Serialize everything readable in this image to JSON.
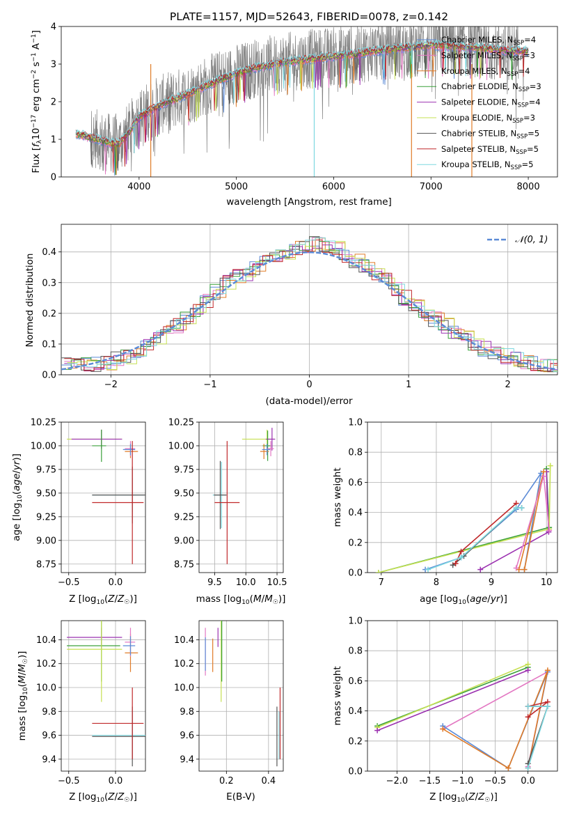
{
  "chart_data": [
    {
      "id": "spectrum",
      "type": "line",
      "title": "PLATE=1157, MJD=52643, FIBERID=0078, z=0.142",
      "xlabel": "wavelength [Angstrom, rest frame]",
      "ylabel": "Flux [f_λ10^−17 erg cm^−2 s^−1 A^−1]",
      "xlim": [
        3200,
        8300
      ],
      "ylim": [
        0,
        4
      ],
      "xticks": [
        "4000",
        "5000",
        "6000",
        "7000",
        "8000"
      ],
      "yticks": [
        "0",
        "1",
        "2",
        "3",
        "4"
      ],
      "grid": false,
      "legend_position": "right",
      "data_continuum": {
        "x": [
          3350,
          3500,
          3650,
          3700,
          3800,
          3900,
          4000,
          4200,
          4500,
          4800,
          5000,
          5200,
          5500,
          5800,
          6000,
          6300,
          6600,
          7000,
          7400,
          7800,
          8000
        ],
        "y": [
          1.15,
          1.05,
          0.95,
          0.9,
          0.9,
          1.2,
          1.6,
          1.9,
          2.2,
          2.55,
          2.75,
          2.9,
          3.05,
          3.15,
          3.2,
          3.3,
          3.4,
          3.5,
          3.45,
          3.35,
          3.35
        ]
      },
      "models": [
        {
          "name": "Chabrier MILES, N$_{SSP}$=4",
          "label_main": "Chabrier MILES, N",
          "label_sub": "SSP",
          "label_tail": "=4",
          "color": "#5b8ad6"
        },
        {
          "name": "Salpeter MILES, N$_{SSP}$=3",
          "label_main": "Salpeter MILES, N",
          "label_sub": "SSP",
          "label_tail": "=3",
          "color": "#e377c2"
        },
        {
          "name": "Kroupa MILES, N$_{SSP}$=4",
          "label_main": "Kroupa MILES, N",
          "label_sub": "SSP",
          "label_tail": "=4",
          "color": "#e07b27"
        },
        {
          "name": "Chabrier ELODIE, N$_{SSP}$=3",
          "label_main": "Chabrier ELODIE, N",
          "label_sub": "SSP",
          "label_tail": "=3",
          "color": "#3aa03a"
        },
        {
          "name": "Salpeter ELODIE, N$_{SSP}$=4",
          "label_main": "Salpeter ELODIE, N",
          "label_sub": "SSP",
          "label_tail": "=4",
          "color": "#9b30b0"
        },
        {
          "name": "Kroupa ELODIE, N$_{SSP}$=3",
          "label_main": "Kroupa ELODIE, N",
          "label_sub": "SSP",
          "label_tail": "=3",
          "color": "#c6e052"
        },
        {
          "name": "Chabrier STELIB, N$_{SSP}$=5",
          "label_main": "Chabrier STELIB, N",
          "label_sub": "SSP",
          "label_tail": "=5",
          "color": "#555555"
        },
        {
          "name": "Salpeter STELIB, N$_{SSP}$=5",
          "label_main": "Salpeter STELIB, N",
          "label_sub": "SSP",
          "label_tail": "=5",
          "color": "#c0282a"
        },
        {
          "name": "Kroupa STELIB, N$_{SSP}$=5",
          "label_main": "Kroupa STELIB, N",
          "label_sub": "SSP",
          "label_tail": "=5",
          "color": "#7dd8e0"
        }
      ]
    },
    {
      "id": "residuals",
      "type": "histogram",
      "xlabel": "(data-model)/error",
      "ylabel": "Normed distribution",
      "xlim": [
        -2.5,
        2.5
      ],
      "ylim": [
        0,
        0.49
      ],
      "xticks": [
        -2,
        -1,
        0,
        1,
        2
      ],
      "yticks": [
        0.0,
        0.1,
        0.2,
        0.3,
        0.4
      ],
      "grid": true,
      "legend_position": "top-right",
      "reference_curve": {
        "label": "𝒩(0, 1)",
        "mean": 0,
        "sigma": 1,
        "color": "#5b8ad6"
      },
      "bin_width": 0.1,
      "bin_edges_start": -2.5,
      "heights_reference": [
        0.03,
        0.03,
        0.032,
        0.035,
        0.04,
        0.05,
        0.06,
        0.075,
        0.1,
        0.12,
        0.14,
        0.16,
        0.19,
        0.21,
        0.24,
        0.27,
        0.3,
        0.32,
        0.33,
        0.35,
        0.37,
        0.39,
        0.4,
        0.41,
        0.42,
        0.43,
        0.42,
        0.41,
        0.39,
        0.37,
        0.35,
        0.33,
        0.31,
        0.28,
        0.25,
        0.23,
        0.2,
        0.18,
        0.16,
        0.14,
        0.12,
        0.1,
        0.085,
        0.07,
        0.06,
        0.05,
        0.04,
        0.035,
        0.03,
        0.025
      ]
    },
    {
      "id": "age-vs-Z",
      "type": "errorbar",
      "xlabel": "Z [log10(Z/Z☉)]",
      "ylabel": "age  [log10(age/yr)]",
      "xlim": [
        -0.58,
        0.32
      ],
      "ylim": [
        8.66,
        10.25
      ],
      "xticks": [
        "−0.5",
        "0.0"
      ],
      "xtick_values": [
        -0.5,
        0.0
      ],
      "yticks": [
        "8.75",
        "9.00",
        "9.25",
        "9.50",
        "9.75",
        "10.00",
        "10.25"
      ],
      "ytick_values": [
        8.75,
        9.0,
        9.25,
        9.5,
        9.75,
        10.0,
        10.25
      ],
      "grid": true,
      "points": [
        {
          "x": -0.15,
          "y": 10.07,
          "xerr": [
            0.37,
            0.22
          ],
          "yerr": 0.1,
          "color": "#c6e052"
        },
        {
          "x": -0.15,
          "y": 10.07,
          "xerr": [
            0.32,
            0.22
          ],
          "yerr": 0.1,
          "color": "#9b30b0"
        },
        {
          "x": -0.15,
          "y": 10.0,
          "xerr": [
            0.1,
            0.05
          ],
          "yerr": 0.17,
          "color": "#3aa03a"
        },
        {
          "x": 0.16,
          "y": 9.94,
          "xerr": [
            0.06,
            0.08
          ],
          "yerr": 0.07,
          "color": "#e07b27"
        },
        {
          "x": 0.16,
          "y": 9.97,
          "xerr": [
            0.06,
            0.05
          ],
          "yerr": 0.08,
          "color": "#e377c2"
        },
        {
          "x": 0.16,
          "y": 9.96,
          "xerr": [
            0.08,
            0.05
          ],
          "yerr": 0.06,
          "color": "#5b8ad6"
        },
        {
          "x": 0.18,
          "y": 9.48,
          "xerr": [
            0.43,
            0.12
          ],
          "yerr": 0.18,
          "color": "#7dd8e0"
        },
        {
          "x": 0.18,
          "y": 9.48,
          "xerr": [
            0.43,
            0.14
          ],
          "yerr": 0.3,
          "color": "#555555"
        },
        {
          "x": 0.18,
          "y": 9.4,
          "xerr": [
            0.43,
            0.12
          ],
          "yerr": 0.65,
          "color": "#c0282a"
        }
      ]
    },
    {
      "id": "age-vs-mass",
      "type": "errorbar",
      "xlabel": "mass [log10(M/M☉)]",
      "xlim": [
        9.25,
        10.6
      ],
      "ylim": [
        8.66,
        10.25
      ],
      "xticks": [
        "9.5",
        "10.0",
        "10.5"
      ],
      "xtick_values": [
        9.5,
        10.0,
        10.5
      ],
      "yticks": [
        "8.75",
        "9.00",
        "9.25",
        "9.50",
        "9.75",
        "10.00",
        "10.25"
      ],
      "ytick_values": [
        8.75,
        9.0,
        9.25,
        9.5,
        9.75,
        10.0,
        10.25
      ],
      "grid": true,
      "points": [
        {
          "x": 10.34,
          "y": 10.07,
          "xerr": [
            0.4,
            0.12
          ],
          "yerr": 0.1,
          "color": "#c6e052"
        },
        {
          "x": 10.42,
          "y": 10.07,
          "xerr": [
            0.1,
            0.05
          ],
          "yerr": 0.12,
          "color": "#9b30b0"
        },
        {
          "x": 10.35,
          "y": 10.0,
          "xerr": [
            0.08,
            0.05
          ],
          "yerr": 0.16,
          "color": "#3aa03a"
        },
        {
          "x": 10.29,
          "y": 9.94,
          "xerr": [
            0.06,
            0.08
          ],
          "yerr": 0.08,
          "color": "#e07b27"
        },
        {
          "x": 10.4,
          "y": 9.97,
          "xerr": [
            0.06,
            0.05
          ],
          "yerr": 0.08,
          "color": "#e377c2"
        },
        {
          "x": 10.34,
          "y": 9.96,
          "xerr": [
            0.08,
            0.05
          ],
          "yerr": 0.06,
          "color": "#5b8ad6"
        },
        {
          "x": 9.61,
          "y": 9.48,
          "xerr": [
            0.14,
            0.08
          ],
          "yerr": 0.35,
          "color": "#7dd8e0"
        },
        {
          "x": 9.59,
          "y": 9.48,
          "xerr": [
            0.1,
            0.1
          ],
          "yerr": 0.36,
          "color": "#555555"
        },
        {
          "x": 9.7,
          "y": 9.4,
          "xerr": [
            0.2,
            0.2
          ],
          "yerr": 0.65,
          "color": "#c0282a"
        }
      ]
    },
    {
      "id": "weight-vs-age",
      "type": "line",
      "xlabel": "age  [log10(age/yr)]",
      "ylabel": "mass weight",
      "xlim": [
        6.75,
        10.2
      ],
      "ylim": [
        0,
        1
      ],
      "xticks": [
        "7",
        "8",
        "9",
        "10"
      ],
      "xtick_values": [
        7,
        8,
        9,
        10
      ],
      "yticks": [
        "0.0",
        "0.2",
        "0.4",
        "0.6",
        "0.8",
        "1.0"
      ],
      "ytick_values": [
        0,
        0.2,
        0.4,
        0.6,
        0.8,
        1.0
      ],
      "grid": true,
      "series": [
        {
          "color": "#3aa03a",
          "x": [
            6.95,
            10.05,
            10.0
          ],
          "y": [
            0.0,
            0.3,
            0.69
          ]
        },
        {
          "color": "#c6e052",
          "x": [
            6.95,
            10.05,
            10.07
          ],
          "y": [
            0.0,
            0.29,
            0.71
          ]
        },
        {
          "color": "#9b30b0",
          "x": [
            8.8,
            10.04,
            10.0
          ],
          "y": [
            0.02,
            0.27,
            0.67
          ]
        },
        {
          "color": "#5b8ad6",
          "x": [
            7.8,
            8.45,
            9.45,
            9.9,
            9.6
          ],
          "y": [
            0.02,
            0.1,
            0.42,
            0.66,
            0.02
          ]
        },
        {
          "color": "#e07b27",
          "x": [
            9.5,
            9.95,
            9.6
          ],
          "y": [
            0.02,
            0.67,
            0.02
          ]
        },
        {
          "color": "#e377c2",
          "x": [
            9.45,
            9.95,
            10.05
          ],
          "y": [
            0.03,
            0.64,
            0.28
          ]
        },
        {
          "color": "#555555",
          "x": [
            8.3,
            8.5,
            9.45,
            9.55
          ],
          "y": [
            0.05,
            0.11,
            0.43,
            0.43
          ]
        },
        {
          "color": "#c0282a",
          "x": [
            8.35,
            8.45,
            9.45
          ],
          "y": [
            0.06,
            0.14,
            0.46
          ]
        },
        {
          "color": "#7dd8e0",
          "x": [
            7.85,
            8.45,
            9.45,
            9.55
          ],
          "y": [
            0.02,
            0.1,
            0.43,
            0.43
          ]
        }
      ]
    },
    {
      "id": "mass-vs-Z",
      "type": "errorbar",
      "xlabel": "Z [log10(Z/Z☉)]",
      "ylabel": "mass [log10(M/M☉)]",
      "xlim": [
        -0.58,
        0.32
      ],
      "ylim": [
        9.3,
        10.56
      ],
      "xticks": [
        "−0.5",
        "0.0"
      ],
      "xtick_values": [
        -0.5,
        0.0
      ],
      "yticks": [
        "9.4",
        "9.6",
        "9.8",
        "10.0",
        "10.2",
        "10.4"
      ],
      "ytick_values": [
        9.4,
        9.6,
        9.8,
        10.0,
        10.2,
        10.4
      ],
      "grid": true,
      "points": [
        {
          "x": -0.15,
          "y": 10.42,
          "xerr": [
            0.37,
            0.22
          ],
          "yerr": 0.08,
          "color": "#9b30b0"
        },
        {
          "x": -0.15,
          "y": 10.35,
          "xerr": [
            0.37,
            0.2
          ],
          "yerr": 0.3,
          "color": "#3aa03a"
        },
        {
          "x": -0.15,
          "y": 10.32,
          "xerr": [
            0.37,
            0.22
          ],
          "yerr": 0.44,
          "color": "#c6e052"
        },
        {
          "x": 0.16,
          "y": 10.29,
          "xerr": [
            0.06,
            0.08
          ],
          "yerr": 0.16,
          "color": "#e07b27"
        },
        {
          "x": 0.16,
          "y": 10.38,
          "xerr": [
            0.06,
            0.05
          ],
          "yerr": 0.12,
          "color": "#e377c2"
        },
        {
          "x": 0.16,
          "y": 10.35,
          "xerr": [
            0.08,
            0.05
          ],
          "yerr": 0.08,
          "color": "#5b8ad6"
        },
        {
          "x": 0.18,
          "y": 9.6,
          "xerr": [
            0.43,
            0.14
          ],
          "yerr": 0.2,
          "color": "#7dd8e0"
        },
        {
          "x": 0.18,
          "y": 9.59,
          "xerr": [
            0.43,
            0.14
          ],
          "yerr": 0.25,
          "color": "#555555"
        },
        {
          "x": 0.18,
          "y": 9.7,
          "xerr": [
            0.43,
            0.12
          ],
          "yerr": 0.3,
          "color": "#c0282a"
        }
      ]
    },
    {
      "id": "mass-vs-ebv",
      "type": "errorbar",
      "xlabel": "E(B-V)",
      "xlim": [
        0.07,
        0.47
      ],
      "ylim": [
        9.3,
        10.56
      ],
      "xticks": [
        "0.2",
        "0.4"
      ],
      "xtick_values": [
        0.2,
        0.4
      ],
      "yticks": [
        "9.4",
        "9.6",
        "9.8",
        "10.0",
        "10.2",
        "10.4"
      ],
      "ytick_values": [
        9.4,
        9.6,
        9.8,
        10.0,
        10.2,
        10.4
      ],
      "grid": true,
      "points": [
        {
          "x": 0.1,
          "y": 10.3,
          "yerr": 0.2,
          "color": "#e377c2"
        },
        {
          "x": 0.1,
          "y": 10.28,
          "yerr": 0.14,
          "color": "#5b8ad6"
        },
        {
          "x": 0.135,
          "y": 10.27,
          "yerr": 0.14,
          "color": "#e07b27"
        },
        {
          "x": 0.16,
          "y": 10.42,
          "yerr": 0.08,
          "color": "#9b30b0"
        },
        {
          "x": 0.175,
          "y": 10.32,
          "yerr": 0.44,
          "color": "#c6e052"
        },
        {
          "x": 0.178,
          "y": 10.35,
          "yerr": 0.3,
          "color": "#3aa03a"
        },
        {
          "x": 0.44,
          "y": 9.59,
          "yerr": 0.25,
          "color": "#555555"
        },
        {
          "x": 0.45,
          "y": 9.6,
          "yerr": 0.2,
          "color": "#7dd8e0"
        },
        {
          "x": 0.455,
          "y": 9.7,
          "yerr": 0.3,
          "color": "#c0282a"
        }
      ]
    },
    {
      "id": "weight-vs-Z",
      "type": "line",
      "xlabel": "Z [log10(Z/Z☉)]",
      "ylabel": "mass weight",
      "xlim": [
        -2.45,
        0.45
      ],
      "ylim": [
        0,
        1
      ],
      "xticks": [
        "−2.0",
        "−1.5",
        "−1.0",
        "−0.5",
        "0.0"
      ],
      "xtick_values": [
        -2.0,
        -1.5,
        -1.0,
        -0.5,
        0.0
      ],
      "yticks": [
        "0.0",
        "0.2",
        "0.4",
        "0.6",
        "0.8",
        "1.0"
      ],
      "ytick_values": [
        0,
        0.2,
        0.4,
        0.6,
        0.8,
        1.0
      ],
      "grid": true,
      "series": [
        {
          "color": "#3aa03a",
          "x": [
            -2.3,
            0.0
          ],
          "y": [
            0.3,
            0.69
          ]
        },
        {
          "color": "#c6e052",
          "x": [
            -2.3,
            0.0
          ],
          "y": [
            0.29,
            0.71
          ]
        },
        {
          "color": "#9b30b0",
          "x": [
            -2.3,
            0.0
          ],
          "y": [
            0.27,
            0.67
          ]
        },
        {
          "color": "#e377c2",
          "x": [
            -1.3,
            0.3,
            0.0
          ],
          "y": [
            0.28,
            0.66,
            0.03
          ]
        },
        {
          "color": "#5b8ad6",
          "x": [
            -1.3,
            -0.3,
            0.3,
            0.0
          ],
          "y": [
            0.3,
            0.02,
            0.66,
            0.02
          ]
        },
        {
          "color": "#e07b27",
          "x": [
            -1.3,
            -0.3,
            0.3,
            0.0
          ],
          "y": [
            0.28,
            0.02,
            0.67,
            0.02
          ]
        },
        {
          "color": "#555555",
          "x": [
            0.0,
            0.3,
            0.0
          ],
          "y": [
            0.05,
            0.43,
            0.43
          ]
        },
        {
          "color": "#c0282a",
          "x": [
            0.0,
            0.3,
            0.0
          ],
          "y": [
            0.36,
            0.46,
            0.43
          ]
        },
        {
          "color": "#7dd8e0",
          "x": [
            0.0,
            0.3,
            0.0
          ],
          "y": [
            0.02,
            0.43,
            0.43
          ]
        }
      ]
    }
  ]
}
